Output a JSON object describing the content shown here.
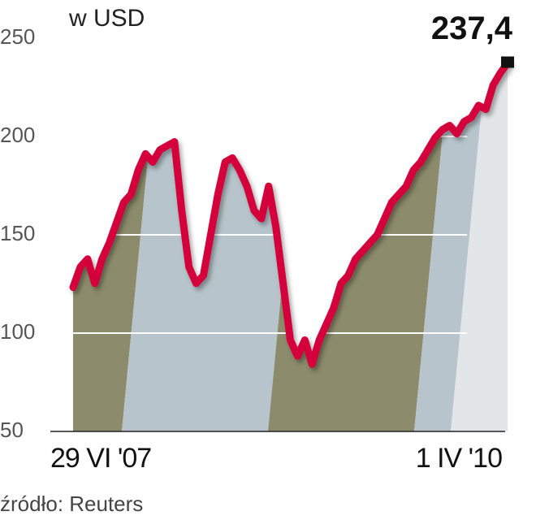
{
  "chart_data": {
    "type": "line",
    "title": "w USD",
    "source": "źródło: Reuters",
    "categories": [
      "29 VI '07",
      null,
      null,
      null,
      null,
      null,
      null,
      null,
      null,
      null,
      null,
      null,
      null,
      null,
      null,
      null,
      null,
      null,
      null,
      null,
      null,
      null,
      null,
      null,
      null,
      null,
      null,
      null,
      null,
      null,
      null,
      null,
      null,
      null,
      null,
      null,
      null,
      null,
      null,
      null,
      null,
      null,
      null,
      null,
      null,
      null,
      null,
      null,
      null,
      null,
      null,
      null,
      null,
      null,
      null,
      null,
      null,
      null,
      null,
      null,
      "1 IV '10"
    ],
    "series": [
      {
        "name": "w USD",
        "color": "#d4003a",
        "values": [
          123.3,
          133.6,
          137.7,
          125.3,
          137.7,
          145.9,
          156.2,
          166.5,
          170.6,
          182.9,
          191.2,
          187.0,
          193.2,
          195.3,
          197.3,
          162.3,
          133.6,
          125.3,
          129.4,
          150.0,
          170.6,
          187.0,
          189.1,
          182.9,
          174.7,
          162.3,
          158.2,
          174.7,
          154.1,
          125.3,
          96.5,
          88.3,
          96.5,
          84.2,
          96.5,
          104.7,
          113.0,
          125.3,
          129.4,
          137.7,
          141.8,
          145.9,
          150.0,
          158.2,
          166.5,
          170.6,
          174.7,
          182.9,
          187.0,
          193.2,
          199.4,
          203.5,
          205.6,
          201.4,
          207.6,
          209.7,
          215.8,
          213.8,
          226.1,
          232.3,
          237.4
        ],
        "value_labels": [
          null,
          null,
          null,
          null,
          null,
          null,
          null,
          null,
          null,
          null,
          null,
          null,
          null,
          null,
          null,
          null,
          null,
          null,
          null,
          null,
          null,
          null,
          null,
          null,
          null,
          null,
          null,
          null,
          null,
          null,
          null,
          null,
          null,
          null,
          null,
          null,
          null,
          null,
          null,
          null,
          null,
          null,
          null,
          null,
          null,
          null,
          null,
          null,
          null,
          null,
          null,
          null,
          null,
          null,
          null,
          null,
          null,
          null,
          null,
          null,
          "237,4"
        ]
      }
    ],
    "ylim": [
      50,
      250
    ],
    "yticks": [
      50,
      100,
      150,
      200,
      250
    ],
    "grid": true
  }
}
